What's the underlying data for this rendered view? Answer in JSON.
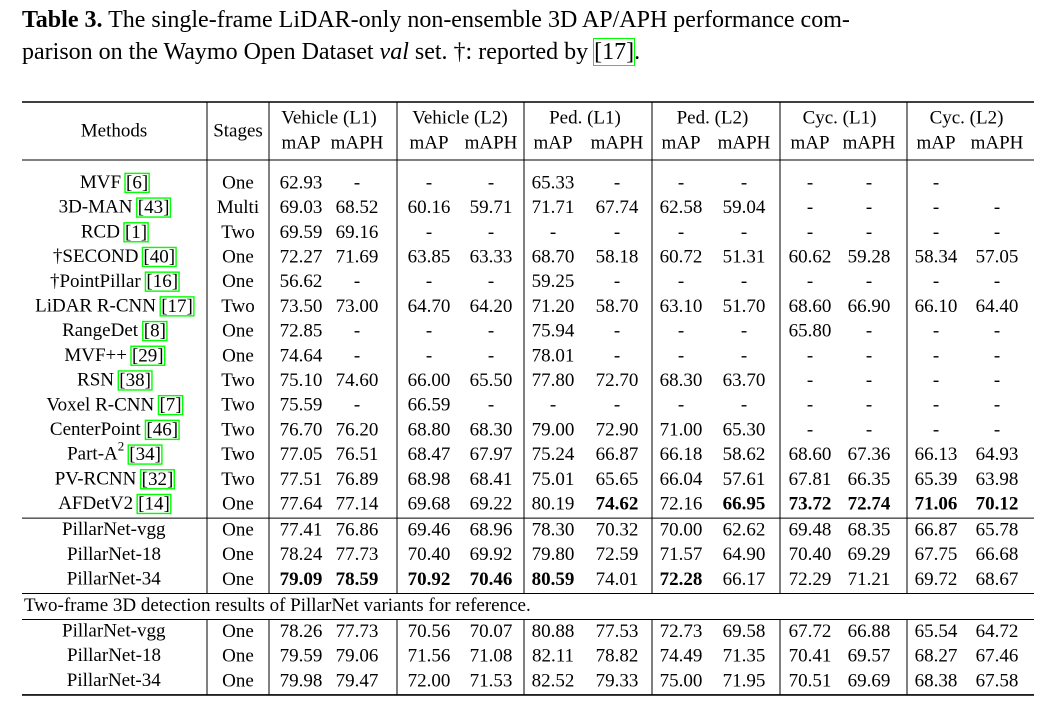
{
  "caption": {
    "label": "Table 3.",
    "line1": "The single-frame LiDAR-only non-ensemble 3D AP/APH performance com-",
    "line2": "parison on the Waymo Open Dataset",
    "italic": "val",
    "rest": "set. †: reported by",
    "ref": "[17]",
    "end": "."
  },
  "table": {
    "header": {
      "methods": "Methods",
      "stages": "Stages",
      "groups": [
        "Vehicle (L1)",
        "Vehicle (L2)",
        "Ped. (L1)",
        "Ped. (L2)",
        "Cyc. (L1)",
        "Cyc. (L2)"
      ],
      "metrics": [
        "mAP",
        "mAPH"
      ]
    },
    "blocks": [
      {
        "rows": [
          {
            "method": "MVF",
            "ref": "[6]",
            "stage": "One",
            "values": [
              "62.93",
              "-",
              "-",
              "-",
              "65.33",
              "-",
              "-",
              "-",
              "-",
              "-",
              "-",
              null
            ]
          },
          {
            "method": "3D-MAN",
            "ref": "[43]",
            "stage": "Multi",
            "values": [
              "69.03",
              "68.52",
              "60.16",
              "59.71",
              "71.71",
              "67.74",
              "62.58",
              "59.04",
              "-",
              "-",
              "-",
              "-"
            ]
          },
          {
            "method": "RCD",
            "ref": "[1]",
            "stage": "Two",
            "values": [
              "69.59",
              "69.16",
              "-",
              "-",
              "-",
              "-",
              "-",
              "-",
              "-",
              "-",
              "-",
              "-"
            ]
          },
          {
            "method": "†SECOND",
            "ref": "[40]",
            "stage": "One",
            "values": [
              "72.27",
              "71.69",
              "63.85",
              "63.33",
              "68.70",
              "58.18",
              "60.72",
              "51.31",
              "60.62",
              "59.28",
              "58.34",
              "57.05"
            ]
          },
          {
            "method": "†PointPillar",
            "ref": "[16]",
            "stage": "One",
            "values": [
              "56.62",
              "-",
              "-",
              "-",
              "59.25",
              "-",
              "-",
              "-",
              "-",
              "-",
              "-",
              "-"
            ]
          },
          {
            "method": "LiDAR R-CNN",
            "ref": "[17]",
            "stage": "Two",
            "values": [
              "73.50",
              "73.00",
              "64.70",
              "64.20",
              "71.20",
              "58.70",
              "63.10",
              "51.70",
              "68.60",
              "66.90",
              "66.10",
              "64.40"
            ]
          },
          {
            "method": "RangeDet",
            "ref": "[8]",
            "stage": "One",
            "values": [
              "72.85",
              "-",
              "-",
              "-",
              "75.94",
              "-",
              "-",
              "-",
              "65.80",
              "-",
              "-",
              "-"
            ]
          },
          {
            "method": "MVF++",
            "ref": "[29]",
            "stage": "One",
            "values": [
              "74.64",
              "-",
              "-",
              "-",
              "78.01",
              "-",
              "-",
              "-",
              "-",
              "-",
              "-",
              "-"
            ]
          },
          {
            "method": "RSN",
            "ref": "[38]",
            "stage": "Two",
            "values": [
              "75.10",
              "74.60",
              "66.00",
              "65.50",
              "77.80",
              "72.70",
              "68.30",
              "63.70",
              "-",
              "-",
              "-",
              "-"
            ]
          },
          {
            "method": "Voxel R-CNN",
            "ref": "[7]",
            "stage": "Two",
            "values": [
              "75.59",
              "-",
              "66.59",
              "-",
              "-",
              "-",
              "-",
              "-",
              "-",
              "-",
              "-",
              "-"
            ]
          },
          {
            "method": "CenterPoint",
            "ref": "[46]",
            "stage": "Two",
            "values": [
              "76.70",
              "76.20",
              "68.80",
              "68.30",
              "79.00",
              "72.90",
              "71.00",
              "65.30",
              "-",
              "-",
              "-",
              "-"
            ]
          },
          {
            "method": "Part-A",
            "sup": "2",
            "ref": "[34]",
            "stage": "Two",
            "values": [
              "77.05",
              "76.51",
              "68.47",
              "67.97",
              "75.24",
              "66.87",
              "66.18",
              "58.62",
              "68.60",
              "67.36",
              "66.13",
              "64.93"
            ]
          },
          {
            "method": "PV-RCNN",
            "ref": "[32]",
            "stage": "Two",
            "values": [
              "77.51",
              "76.89",
              "68.98",
              "68.41",
              "75.01",
              "65.65",
              "66.04",
              "57.61",
              "67.81",
              "66.35",
              "65.39",
              "63.98"
            ]
          },
          {
            "method": "AFDetV2",
            "ref": "[14]",
            "stage": "One",
            "values": [
              "77.64",
              "77.14",
              "69.68",
              "69.22",
              "80.19",
              "74.62",
              "72.16",
              "66.95",
              "73.72",
              "72.74",
              "71.06",
              "70.12"
            ],
            "bold": [
              5,
              7,
              8,
              9,
              10,
              11
            ]
          }
        ]
      },
      {
        "rows": [
          {
            "method": "PillarNet-vgg",
            "stage": "One",
            "values": [
              "77.41",
              "76.86",
              "69.46",
              "68.96",
              "78.30",
              "70.32",
              "70.00",
              "62.62",
              "69.48",
              "68.35",
              "66.87",
              "65.78"
            ]
          },
          {
            "method": "PillarNet-18",
            "stage": "One",
            "values": [
              "78.24",
              "77.73",
              "70.40",
              "69.92",
              "79.80",
              "72.59",
              "71.57",
              "64.90",
              "70.40",
              "69.29",
              "67.75",
              "66.68"
            ]
          },
          {
            "method": "PillarNet-34",
            "stage": "One",
            "values": [
              "79.09",
              "78.59",
              "70.92",
              "70.46",
              "80.59",
              "74.01",
              "72.28",
              "66.17",
              "72.29",
              "71.21",
              "69.72",
              "68.67"
            ],
            "bold": [
              0,
              1,
              2,
              3,
              4,
              6
            ]
          }
        ]
      },
      {
        "note": "Two-frame 3D detection results of PillarNet variants for reference.",
        "rows": [
          {
            "method": "PillarNet-vgg",
            "stage": "One",
            "values": [
              "78.26",
              "77.73",
              "70.56",
              "70.07",
              "80.88",
              "77.53",
              "72.73",
              "69.58",
              "67.72",
              "66.88",
              "65.54",
              "64.72"
            ]
          },
          {
            "method": "PillarNet-18",
            "stage": "One",
            "values": [
              "79.59",
              "79.06",
              "71.56",
              "71.08",
              "82.11",
              "78.82",
              "74.49",
              "71.35",
              "70.41",
              "69.57",
              "68.27",
              "67.46"
            ]
          },
          {
            "method": "PillarNet-34",
            "stage": "One",
            "values": [
              "79.98",
              "79.47",
              "72.00",
              "71.53",
              "82.52",
              "79.33",
              "75.00",
              "71.95",
              "70.51",
              "69.69",
              "68.38",
              "67.58"
            ]
          }
        ]
      }
    ]
  }
}
